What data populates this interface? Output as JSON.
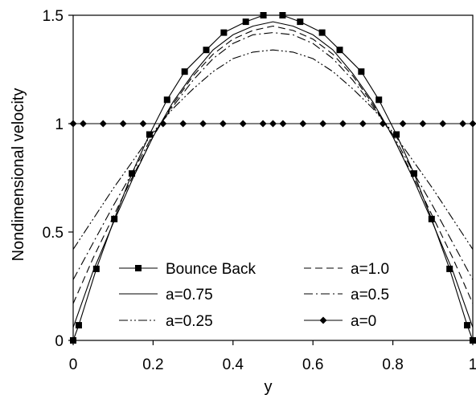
{
  "chart_data": {
    "type": "line",
    "xlabel": "y",
    "ylabel": "Nondimensional velocity",
    "xlim": [
      0,
      1
    ],
    "ylim": [
      0,
      1.5
    ],
    "xticks": [
      "0",
      "0.2",
      "0.4",
      "0.6",
      "0.8",
      "1"
    ],
    "yticks": [
      "0",
      "0.5",
      "1",
      "1.5"
    ],
    "grid": false,
    "legend_position": "bottom-center",
    "series": [
      {
        "name": "Bounce Back",
        "style": "solid-square-markers",
        "x": [
          0,
          0.014,
          0.058,
          0.103,
          0.147,
          0.191,
          0.235,
          0.279,
          0.333,
          0.377,
          0.432,
          0.476,
          0.524,
          0.568,
          0.623,
          0.667,
          0.721,
          0.765,
          0.809,
          0.853,
          0.897,
          0.942,
          0.986,
          1
        ],
        "y": [
          0,
          0.07,
          0.33,
          0.56,
          0.77,
          0.95,
          1.11,
          1.24,
          1.34,
          1.42,
          1.47,
          1.5,
          1.5,
          1.47,
          1.42,
          1.34,
          1.24,
          1.11,
          0.95,
          0.77,
          0.56,
          0.33,
          0.07,
          0
        ]
      },
      {
        "name": "a=1.0",
        "style": "dashed",
        "x": [
          0,
          0.05,
          0.1,
          0.15,
          0.2,
          0.25,
          0.3,
          0.35,
          0.4,
          0.45,
          0.5,
          0.55,
          0.6,
          0.65,
          0.7,
          0.75,
          0.8,
          0.85,
          0.9,
          0.95,
          1
        ],
        "y": [
          0.17,
          0.38,
          0.57,
          0.76,
          0.94,
          1.09,
          1.22,
          1.32,
          1.39,
          1.43,
          1.45,
          1.43,
          1.39,
          1.32,
          1.22,
          1.09,
          0.94,
          0.76,
          0.57,
          0.38,
          0.17
        ]
      },
      {
        "name": "a=0.75",
        "style": "solid",
        "x": [
          0,
          0.05,
          0.1,
          0.15,
          0.2,
          0.25,
          0.3,
          0.35,
          0.4,
          0.45,
          0.5,
          0.55,
          0.6,
          0.65,
          0.7,
          0.75,
          0.8,
          0.85,
          0.9,
          0.95,
          1
        ],
        "y": [
          0.06,
          0.32,
          0.54,
          0.75,
          0.94,
          1.1,
          1.23,
          1.34,
          1.41,
          1.45,
          1.47,
          1.45,
          1.41,
          1.34,
          1.23,
          1.1,
          0.94,
          0.75,
          0.54,
          0.32,
          0.06
        ]
      },
      {
        "name": "a=0.5",
        "style": "dash-dot",
        "x": [
          0,
          0.05,
          0.1,
          0.15,
          0.2,
          0.25,
          0.3,
          0.35,
          0.4,
          0.45,
          0.5,
          0.55,
          0.6,
          0.65,
          0.7,
          0.75,
          0.8,
          0.85,
          0.9,
          0.95,
          1
        ],
        "y": [
          0.28,
          0.45,
          0.62,
          0.78,
          0.95,
          1.08,
          1.2,
          1.3,
          1.37,
          1.41,
          1.42,
          1.41,
          1.37,
          1.3,
          1.2,
          1.08,
          0.95,
          0.78,
          0.62,
          0.45,
          0.28
        ]
      },
      {
        "name": "a=0.25",
        "style": "dash-dot-dot",
        "x": [
          0,
          0.05,
          0.1,
          0.15,
          0.2,
          0.25,
          0.3,
          0.35,
          0.4,
          0.45,
          0.5,
          0.55,
          0.6,
          0.65,
          0.7,
          0.75,
          0.8,
          0.85,
          0.9,
          0.95,
          1
        ],
        "y": [
          0.42,
          0.56,
          0.7,
          0.83,
          0.96,
          1.07,
          1.16,
          1.24,
          1.3,
          1.33,
          1.34,
          1.33,
          1.3,
          1.24,
          1.16,
          1.07,
          0.96,
          0.83,
          0.7,
          0.56,
          0.42
        ]
      },
      {
        "name": "a=0",
        "style": "solid-diamond-markers",
        "x": [
          0,
          0.025,
          0.075,
          0.125,
          0.175,
          0.225,
          0.275,
          0.325,
          0.375,
          0.425,
          0.475,
          0.5,
          0.525,
          0.575,
          0.625,
          0.675,
          0.725,
          0.775,
          0.825,
          0.875,
          0.925,
          0.975,
          1
        ],
        "y": [
          1,
          1,
          1,
          1,
          1,
          1,
          1,
          1,
          1,
          1,
          1,
          1,
          1,
          1,
          1,
          1,
          1,
          1,
          1,
          1,
          1,
          1,
          1
        ]
      }
    ]
  }
}
